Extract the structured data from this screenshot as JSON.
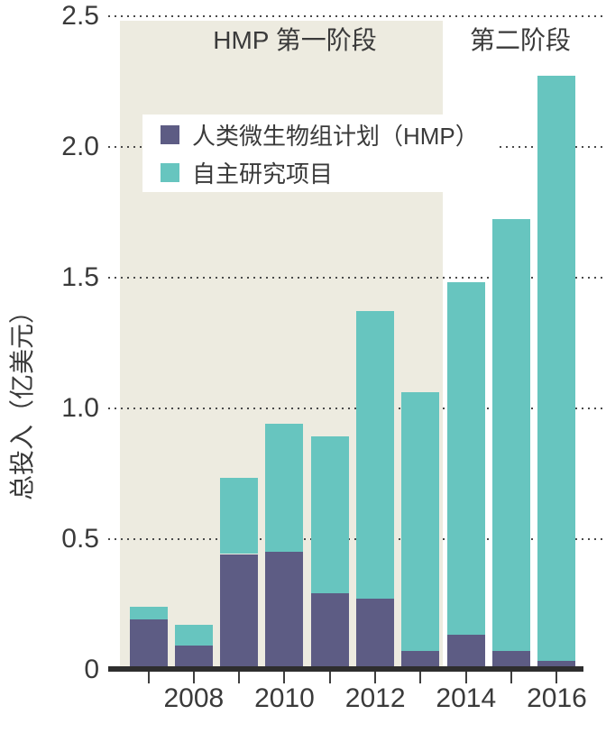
{
  "chart_data": {
    "type": "bar",
    "stacked": true,
    "categories": [
      2007,
      2008,
      2009,
      2010,
      2011,
      2012,
      2013,
      2014,
      2015,
      2016
    ],
    "series": [
      {
        "name": "人类微生物组计划（HMP）",
        "color": "#5d5c84",
        "values": [
          0.2,
          0.1,
          0.45,
          0.46,
          0.3,
          0.28,
          0.08,
          0.14,
          0.08,
          0.04
        ]
      },
      {
        "name": "自主研究项目",
        "color": "#67c5bf",
        "values": [
          0.05,
          0.08,
          0.29,
          0.49,
          0.6,
          1.1,
          0.99,
          1.35,
          1.65,
          2.24
        ]
      }
    ],
    "totals": [
      0.25,
      0.18,
      0.74,
      0.95,
      0.9,
      1.38,
      1.07,
      1.49,
      1.73,
      2.28
    ],
    "title": "",
    "xlabel": "",
    "ylabel": "总投入（亿美元）",
    "ylim": [
      0,
      2.5
    ],
    "yticks": [
      0,
      0.5,
      1.0,
      1.5,
      2.0,
      2.5
    ],
    "ytick_labels": [
      "0",
      "0.5",
      "1.0",
      "1.5",
      "2.0",
      "2.5"
    ],
    "xtick_labels": [
      "2008",
      "2010",
      "2012",
      "2014",
      "2016"
    ],
    "grid": "dotted-horizontal",
    "legend_position": "upper-left-inside",
    "annotations": [
      {
        "id": "phase1",
        "text": "HMP 第一阶段",
        "band_color": "#edebe0",
        "covers_years": [
          2007,
          2013
        ]
      },
      {
        "id": "phase2",
        "text": "第二阶段",
        "covers_years": [
          2014,
          2016
        ]
      }
    ]
  }
}
